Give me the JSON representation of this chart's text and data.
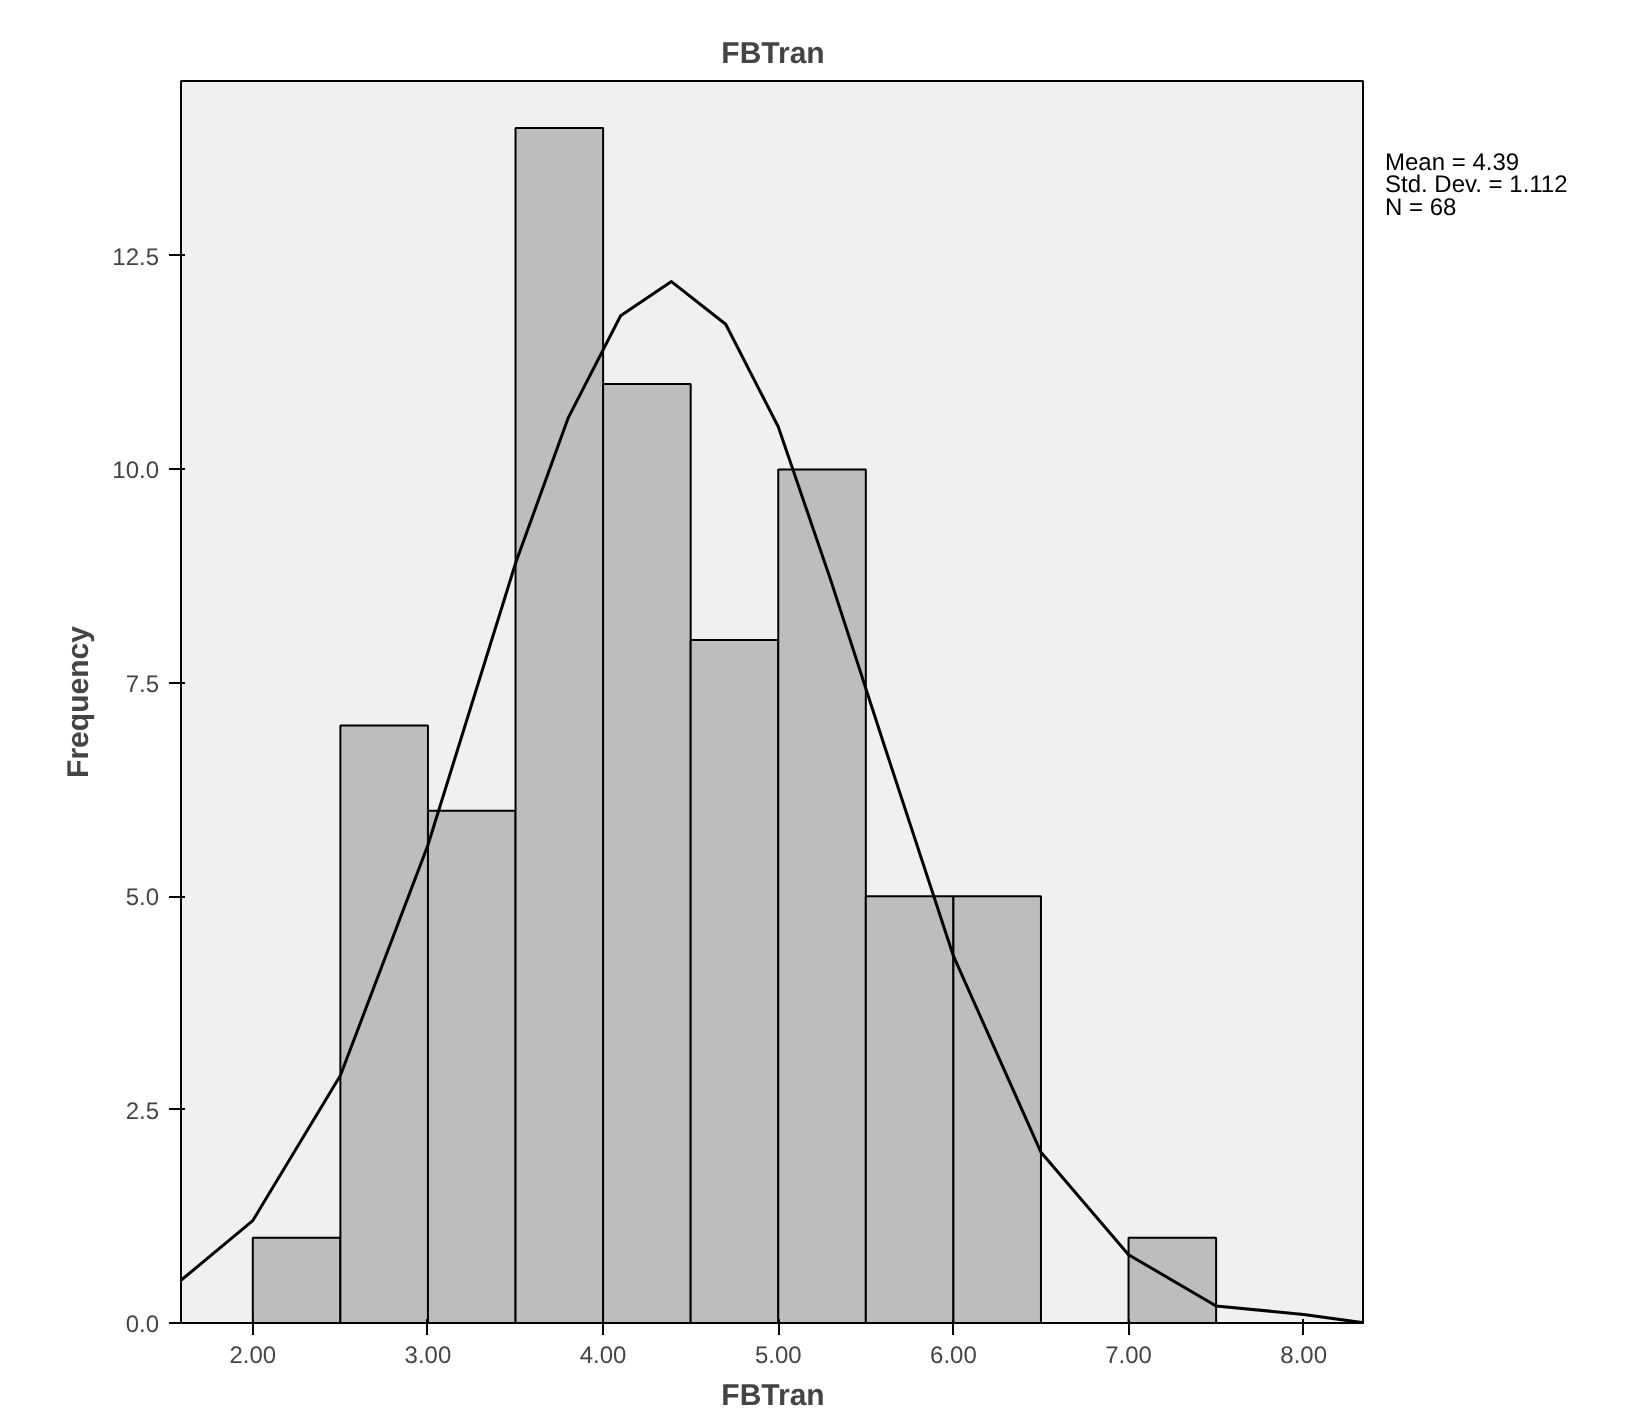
{
  "chart_data": {
    "type": "histogram",
    "title": "FBTran",
    "xlabel": "FBTran",
    "ylabel": "Frequency",
    "bins": [
      2.0,
      2.5,
      3.0,
      3.5,
      4.0,
      4.5,
      5.0,
      5.5,
      6.0,
      6.5,
      7.0,
      7.5
    ],
    "series": [
      {
        "type": "histogram",
        "color": "#bdbdbd",
        "values": [
          1,
          7,
          6,
          14,
          11,
          8,
          10,
          5,
          5,
          0,
          1
        ]
      },
      {
        "type": "line",
        "color": "#000000",
        "x": [
          1.59,
          2,
          2.5,
          3,
          3.5,
          3.8,
          4.1,
          4.39,
          4.7,
          5,
          5.3,
          5.6,
          6,
          6.5,
          7,
          7.5,
          8,
          8.35
        ],
        "values": [
          0.5,
          1.2,
          2.9,
          5.6,
          8.9,
          10.6,
          11.8,
          12.2,
          11.7,
          10.5,
          8.7,
          6.8,
          4.3,
          2.0,
          0.8,
          0.2,
          0.1,
          0.0
        ]
      }
    ],
    "xlim": [
      1.59,
      8.35
    ],
    "ylim": [
      0,
      14.55
    ],
    "xticks": [
      {
        "value": 2,
        "label": "2.00"
      },
      {
        "value": 3,
        "label": "3.00"
      },
      {
        "value": 4,
        "label": "4.00"
      },
      {
        "value": 5,
        "label": "5.00"
      },
      {
        "value": 6,
        "label": "6.00"
      },
      {
        "value": 7,
        "label": "7.00"
      },
      {
        "value": 8,
        "label": "8.00"
      }
    ],
    "yticks": [
      {
        "value": 0,
        "label": "0.0"
      },
      2.5,
      {
        "value": 5,
        "label": "5.0"
      },
      7.5,
      {
        "value": 10,
        "label": "10.0"
      },
      12.5
    ],
    "annotations": [
      "Mean = 4.39",
      "Std. Dev. = 1.112",
      "N = 68"
    ],
    "grid": false
  }
}
